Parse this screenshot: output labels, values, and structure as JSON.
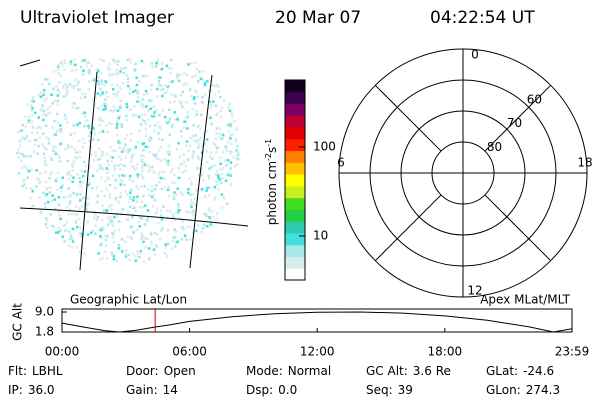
{
  "header": {
    "instrument": "Ultraviolet Imager",
    "date": "20 Mar 07",
    "time": "04:22:54 UT"
  },
  "colorbar": {
    "label": [
      "photon cm",
      "-2",
      "s",
      "-1"
    ],
    "log_scale": true,
    "lim": [
      3.2,
      565
    ],
    "ticks": [
      10,
      100
    ],
    "colors": [
      "#ffffff",
      "#d8ecec",
      "#a8e8e8",
      "#40e0e0",
      "#30c8b0",
      "#20d040",
      "#40e020",
      "#c8f020",
      "#ffff00",
      "#ffc000",
      "#ff8000",
      "#ff2000",
      "#e00000",
      "#c00030",
      "#800060",
      "#400050",
      "#100020"
    ]
  },
  "image_panel": {
    "left_label": "Geographic Lat/Lon",
    "right_label": "Apex MLat/MLT"
  },
  "polar": {
    "clock_labels": [
      {
        "value": 12,
        "label": "12"
      },
      {
        "value": 18,
        "label": "18"
      },
      {
        "value": 6,
        "label": "6"
      },
      {
        "value": 0,
        "label": "0"
      }
    ],
    "rings": [
      60,
      70,
      80
    ]
  },
  "orbit": {
    "y_label": "GC Alt",
    "ylim": [
      1.8,
      9.0
    ],
    "yticks": [
      {
        "value": 9.0,
        "label": "9.0"
      },
      {
        "value": 1.8,
        "label": "1.8"
      }
    ],
    "xlim": [
      0,
      23.98
    ],
    "xticks": [
      {
        "value": 0,
        "label": "00:00"
      },
      {
        "value": 6,
        "label": "06:00"
      },
      {
        "value": 12,
        "label": "12:00"
      },
      {
        "value": 18,
        "label": "18:00"
      },
      {
        "value": 23.98,
        "label": "23:59"
      }
    ],
    "x": [
      0,
      1,
      2,
      2.7,
      3.5,
      4.38,
      5,
      6,
      8,
      10,
      12,
      14,
      16,
      18,
      20,
      22,
      23.1,
      23.98
    ],
    "values": [
      5.0,
      3.6,
      2.3,
      1.8,
      2.4,
      3.6,
      4.3,
      5.6,
      7.3,
      8.4,
      8.9,
      9.0,
      8.6,
      7.6,
      6.0,
      3.6,
      1.8,
      3.0
    ],
    "current_time": 4.38,
    "marker_color": "#cc0000"
  },
  "status": [
    [
      {
        "label": "Flt:",
        "value": "LBHL"
      },
      {
        "label": "Door:",
        "value": "Open"
      },
      {
        "label": "Mode:",
        "value": "Normal"
      },
      {
        "label": "GC Alt:",
        "value": "3.6 Re"
      },
      {
        "label": "GLat:",
        "value": "-24.6"
      }
    ],
    [
      {
        "label": "IP:",
        "value": "36.0"
      },
      {
        "label": "Gain:",
        "value": "14"
      },
      {
        "label": "Dsp:",
        "value": "0.0"
      },
      {
        "label": "Seq:",
        "value": "39"
      },
      {
        "label": "GLon:",
        "value": "274.3"
      }
    ]
  ]
}
